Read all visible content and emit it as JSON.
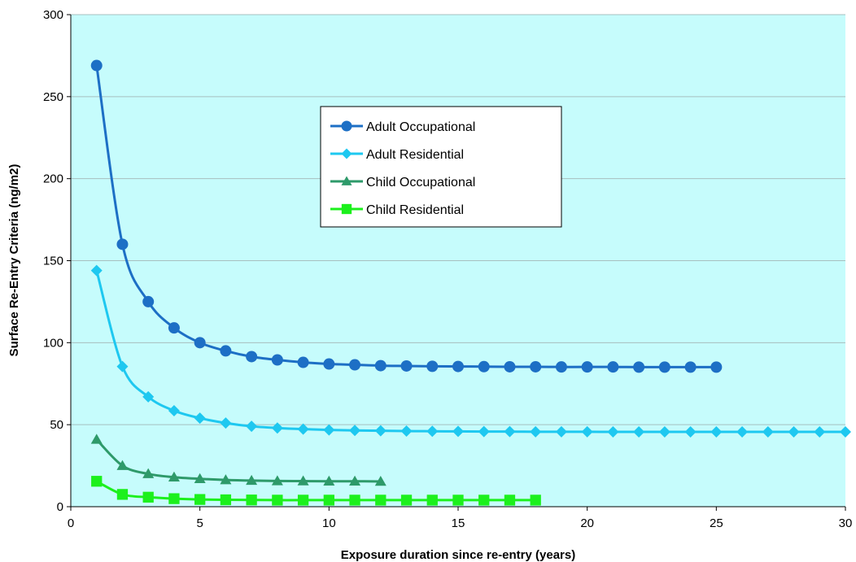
{
  "chart_data": {
    "type": "line",
    "title": "",
    "xlabel": "Exposure duration since re-entry (years)",
    "ylabel": "Surface Re-Entry Criteria (ng/m2)",
    "xlim": [
      0,
      30
    ],
    "ylim": [
      0,
      300
    ],
    "xticks": [
      "0",
      "5",
      "10",
      "15",
      "20",
      "25",
      "30"
    ],
    "yticks": [
      "0",
      "50",
      "100",
      "150",
      "200",
      "250",
      "300"
    ],
    "grid": "horizontal",
    "legend_position": "upper-center",
    "plot_background": "#c6fcfc",
    "series": [
      {
        "name": "Adult Occupational",
        "marker": "circle",
        "color": "#1d6fc5",
        "x": [
          1,
          2,
          3,
          4,
          5,
          6,
          7,
          8,
          9,
          10,
          11,
          12,
          13,
          14,
          15,
          16,
          17,
          18,
          19,
          20,
          21,
          22,
          23,
          24,
          25
        ],
        "values": [
          269,
          160,
          125,
          109,
          100,
          95,
          91.5,
          89.5,
          88,
          87,
          86.5,
          86,
          85.8,
          85.6,
          85.5,
          85.4,
          85.3,
          85.3,
          85.2,
          85.2,
          85.2,
          85.1,
          85.1,
          85.1,
          85.1
        ]
      },
      {
        "name": "Adult Residential",
        "marker": "diamond",
        "color": "#1ec8f0",
        "x": [
          1,
          2,
          3,
          4,
          5,
          6,
          7,
          8,
          9,
          10,
          11,
          12,
          13,
          14,
          15,
          16,
          17,
          18,
          19,
          20,
          21,
          22,
          23,
          24,
          25,
          26,
          27,
          28,
          29,
          30
        ],
        "values": [
          144,
          85.5,
          67,
          58.5,
          54,
          51,
          49,
          48,
          47.3,
          46.8,
          46.5,
          46.3,
          46.1,
          46,
          45.9,
          45.8,
          45.8,
          45.7,
          45.7,
          45.7,
          45.6,
          45.6,
          45.6,
          45.6,
          45.6,
          45.6,
          45.6,
          45.6,
          45.6,
          45.6
        ]
      },
      {
        "name": "Child Occupational",
        "marker": "triangle",
        "color": "#2e9a6a",
        "x": [
          1,
          2,
          3,
          4,
          5,
          6,
          7,
          8,
          9,
          10,
          11,
          12
        ],
        "values": [
          41,
          25,
          20,
          18,
          17,
          16.3,
          15.9,
          15.7,
          15.6,
          15.5,
          15.5,
          15.4
        ]
      },
      {
        "name": "Child Residential",
        "marker": "square",
        "color": "#1cf01c",
        "x": [
          1,
          2,
          3,
          4,
          5,
          6,
          7,
          8,
          9,
          10,
          11,
          12,
          13,
          14,
          15,
          16,
          17,
          18
        ],
        "values": [
          15.5,
          7.5,
          5.8,
          4.9,
          4.4,
          4.2,
          4.1,
          4,
          4,
          4,
          4,
          4,
          4,
          4,
          4,
          4,
          4,
          4
        ]
      }
    ]
  }
}
